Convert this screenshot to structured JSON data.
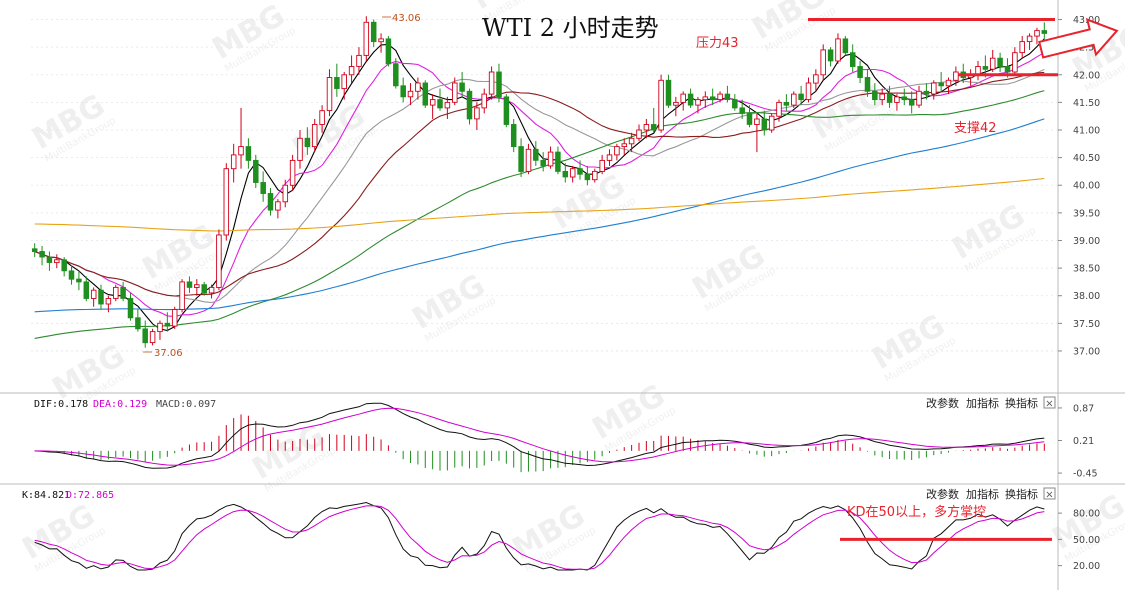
{
  "chart_data": {
    "type": "candlestick",
    "title": "WTI 2 小时走势",
    "price_axis": {
      "ticks": [
        "43.00",
        "42.50",
        "42.00",
        "41.50",
        "41.00",
        "40.50",
        "40.00",
        "39.50",
        "39.00",
        "38.50",
        "38.00",
        "37.50",
        "37.00"
      ],
      "range": [
        36.8,
        43.1
      ]
    },
    "annotations": {
      "resistance": "压力43",
      "support": "支撑42",
      "high": "43.06",
      "low": "37.06",
      "kd_note": "KD在50以上，多方掌控"
    },
    "levels": {
      "resistance": 43.0,
      "support": 42.0
    },
    "ohlc": [
      [
        38.85,
        38.95,
        38.7,
        38.8
      ],
      [
        38.8,
        38.9,
        38.55,
        38.7
      ],
      [
        38.7,
        38.8,
        38.45,
        38.6
      ],
      [
        38.6,
        38.75,
        38.5,
        38.65
      ],
      [
        38.65,
        38.7,
        38.35,
        38.45
      ],
      [
        38.45,
        38.55,
        38.2,
        38.3
      ],
      [
        38.3,
        38.45,
        38.1,
        38.25
      ],
      [
        38.25,
        38.35,
        37.9,
        37.95
      ],
      [
        37.95,
        38.15,
        37.8,
        38.1
      ],
      [
        38.1,
        38.2,
        37.75,
        37.85
      ],
      [
        37.85,
        38.0,
        37.7,
        37.95
      ],
      [
        37.95,
        38.2,
        37.9,
        38.15
      ],
      [
        38.15,
        38.25,
        37.9,
        37.95
      ],
      [
        37.95,
        38.05,
        37.55,
        37.6
      ],
      [
        37.6,
        37.75,
        37.35,
        37.4
      ],
      [
        37.4,
        37.55,
        37.06,
        37.15
      ],
      [
        37.15,
        37.4,
        37.1,
        37.35
      ],
      [
        37.35,
        37.55,
        37.2,
        37.5
      ],
      [
        37.5,
        37.7,
        37.35,
        37.45
      ],
      [
        37.45,
        37.8,
        37.4,
        37.75
      ],
      [
        37.75,
        38.3,
        37.7,
        38.25
      ],
      [
        38.25,
        38.35,
        38.05,
        38.15
      ],
      [
        38.15,
        38.3,
        38.0,
        38.2
      ],
      [
        38.2,
        38.25,
        38.0,
        38.05
      ],
      [
        38.05,
        38.2,
        37.95,
        38.15
      ],
      [
        38.15,
        39.2,
        38.1,
        39.1
      ],
      [
        39.1,
        40.4,
        39.0,
        40.3
      ],
      [
        40.3,
        40.75,
        40.05,
        40.55
      ],
      [
        40.55,
        41.4,
        40.3,
        40.7
      ],
      [
        40.7,
        40.85,
        40.3,
        40.45
      ],
      [
        40.45,
        40.55,
        39.95,
        40.05
      ],
      [
        40.05,
        40.25,
        39.7,
        39.85
      ],
      [
        39.85,
        39.95,
        39.45,
        39.55
      ],
      [
        39.55,
        39.75,
        39.4,
        39.7
      ],
      [
        39.7,
        40.1,
        39.6,
        40.0
      ],
      [
        40.0,
        40.55,
        39.9,
        40.45
      ],
      [
        40.45,
        41.0,
        40.3,
        40.85
      ],
      [
        40.85,
        41.05,
        40.55,
        40.7
      ],
      [
        40.7,
        41.2,
        40.6,
        41.1
      ],
      [
        41.1,
        41.45,
        40.95,
        41.35
      ],
      [
        41.35,
        42.1,
        41.25,
        41.95
      ],
      [
        41.95,
        42.2,
        41.6,
        41.75
      ],
      [
        41.75,
        42.05,
        41.55,
        42.0
      ],
      [
        42.0,
        42.35,
        41.85,
        42.15
      ],
      [
        42.15,
        42.5,
        42.0,
        42.35
      ],
      [
        42.35,
        43.06,
        42.25,
        42.95
      ],
      [
        42.95,
        43.0,
        42.5,
        42.6
      ],
      [
        42.6,
        42.75,
        42.4,
        42.65
      ],
      [
        42.65,
        42.7,
        42.15,
        42.2
      ],
      [
        42.2,
        42.3,
        41.75,
        41.8
      ],
      [
        41.8,
        41.95,
        41.5,
        41.6
      ],
      [
        41.6,
        41.85,
        41.45,
        41.7
      ],
      [
        41.7,
        41.95,
        41.55,
        41.85
      ],
      [
        41.85,
        41.9,
        41.4,
        41.45
      ],
      [
        41.45,
        41.65,
        41.2,
        41.55
      ],
      [
        41.55,
        41.75,
        41.35,
        41.4
      ],
      [
        41.4,
        41.6,
        41.2,
        41.5
      ],
      [
        41.5,
        41.95,
        41.45,
        41.85
      ],
      [
        41.85,
        42.05,
        41.6,
        41.7
      ],
      [
        41.7,
        41.75,
        41.1,
        41.2
      ],
      [
        41.2,
        41.5,
        41.0,
        41.4
      ],
      [
        41.4,
        41.75,
        41.3,
        41.65
      ],
      [
        41.65,
        42.15,
        41.55,
        42.05
      ],
      [
        42.05,
        42.2,
        41.5,
        41.6
      ],
      [
        41.6,
        41.65,
        41.05,
        41.1
      ],
      [
        41.1,
        41.2,
        40.6,
        40.7
      ],
      [
        40.7,
        40.85,
        40.15,
        40.25
      ],
      [
        40.25,
        40.75,
        40.2,
        40.65
      ],
      [
        40.65,
        40.8,
        40.35,
        40.45
      ],
      [
        40.45,
        40.6,
        40.25,
        40.35
      ],
      [
        40.35,
        40.7,
        40.3,
        40.6
      ],
      [
        40.6,
        40.7,
        40.2,
        40.25
      ],
      [
        40.25,
        40.4,
        40.05,
        40.15
      ],
      [
        40.15,
        40.35,
        40.05,
        40.3
      ],
      [
        40.3,
        40.45,
        40.1,
        40.2
      ],
      [
        40.2,
        40.35,
        40.0,
        40.1
      ],
      [
        40.1,
        40.3,
        40.05,
        40.25
      ],
      [
        40.25,
        40.55,
        40.2,
        40.45
      ],
      [
        40.45,
        40.65,
        40.35,
        40.55
      ],
      [
        40.55,
        40.75,
        40.45,
        40.7
      ],
      [
        40.7,
        40.85,
        40.55,
        40.75
      ],
      [
        40.75,
        40.95,
        40.6,
        40.85
      ],
      [
        40.85,
        41.1,
        40.8,
        41.0
      ],
      [
        41.0,
        41.2,
        40.85,
        41.1
      ],
      [
        41.1,
        41.4,
        40.95,
        41.0
      ],
      [
        41.0,
        42.0,
        40.95,
        41.9
      ],
      [
        41.9,
        42.0,
        41.4,
        41.45
      ],
      [
        41.45,
        41.6,
        41.25,
        41.5
      ],
      [
        41.5,
        41.7,
        41.35,
        41.65
      ],
      [
        41.65,
        41.75,
        41.4,
        41.45
      ],
      [
        41.45,
        41.6,
        41.3,
        41.55
      ],
      [
        41.55,
        41.7,
        41.4,
        41.6
      ],
      [
        41.6,
        41.75,
        41.45,
        41.55
      ],
      [
        41.55,
        41.7,
        41.5,
        41.65
      ],
      [
        41.65,
        41.8,
        41.5,
        41.55
      ],
      [
        41.55,
        41.65,
        41.35,
        41.4
      ],
      [
        41.4,
        41.55,
        41.2,
        41.3
      ],
      [
        41.3,
        41.45,
        41.05,
        41.1
      ],
      [
        41.1,
        41.3,
        40.6,
        41.2
      ],
      [
        41.2,
        41.35,
        40.9,
        41.0
      ],
      [
        41.0,
        41.3,
        40.95,
        41.25
      ],
      [
        41.25,
        41.55,
        41.15,
        41.5
      ],
      [
        41.5,
        41.65,
        41.35,
        41.45
      ],
      [
        41.45,
        41.7,
        41.4,
        41.65
      ],
      [
        41.65,
        41.8,
        41.45,
        41.55
      ],
      [
        41.55,
        41.95,
        41.5,
        41.85
      ],
      [
        41.85,
        42.1,
        41.7,
        42.0
      ],
      [
        42.0,
        42.55,
        41.9,
        42.45
      ],
      [
        42.45,
        42.5,
        42.15,
        42.25
      ],
      [
        42.25,
        42.75,
        42.2,
        42.65
      ],
      [
        42.65,
        42.7,
        42.35,
        42.4
      ],
      [
        42.4,
        42.55,
        42.05,
        42.15
      ],
      [
        42.15,
        42.25,
        41.85,
        41.95
      ],
      [
        41.95,
        42.1,
        41.6,
        41.7
      ],
      [
        41.7,
        41.85,
        41.45,
        41.55
      ],
      [
        41.55,
        41.75,
        41.45,
        41.65
      ],
      [
        41.65,
        41.8,
        41.4,
        41.5
      ],
      [
        41.5,
        41.65,
        41.35,
        41.6
      ],
      [
        41.6,
        41.75,
        41.45,
        41.55
      ],
      [
        41.55,
        41.7,
        41.3,
        41.45
      ],
      [
        41.45,
        41.8,
        41.4,
        41.7
      ],
      [
        41.7,
        41.85,
        41.55,
        41.65
      ],
      [
        41.65,
        41.9,
        41.55,
        41.85
      ],
      [
        41.85,
        42.05,
        41.7,
        41.8
      ],
      [
        41.8,
        41.95,
        41.65,
        41.9
      ],
      [
        41.9,
        42.15,
        41.8,
        42.05
      ],
      [
        42.05,
        42.2,
        41.85,
        41.95
      ],
      [
        41.95,
        42.1,
        41.8,
        42.0
      ],
      [
        42.0,
        42.25,
        41.9,
        42.15
      ],
      [
        42.15,
        42.35,
        41.95,
        42.1
      ],
      [
        42.1,
        42.45,
        42.05,
        42.3
      ],
      [
        42.3,
        42.4,
        42.05,
        42.15
      ],
      [
        42.15,
        42.3,
        41.95,
        42.05
      ],
      [
        42.05,
        42.5,
        42.0,
        42.4
      ],
      [
        42.4,
        42.7,
        42.3,
        42.6
      ],
      [
        42.6,
        42.75,
        42.45,
        42.7
      ],
      [
        42.7,
        42.85,
        42.55,
        42.8
      ],
      [
        42.8,
        42.95,
        42.65,
        42.75
      ]
    ],
    "moving_averages": [
      {
        "name": "",
        "color": "#000000",
        "period": 5
      },
      {
        "name": "",
        "color": "#e020e0",
        "period": 10
      },
      {
        "name": "",
        "color": "#999999",
        "period": 20
      },
      {
        "name": "",
        "color": "#8b1c1c",
        "period": 30
      },
      {
        "name": "",
        "color": "#2e8b2e",
        "period": 60
      },
      {
        "name": "",
        "color": "#1f7fd1",
        "period": 120
      },
      {
        "name": "",
        "color": "#e8a317",
        "period": 250
      }
    ],
    "macd_panel": {
      "dif_label": "DIF:0.178",
      "dea_label": "DEA:0.129",
      "macd_label": "MACD:0.097",
      "ticks": [
        "0.87",
        "0.21",
        "-0.45"
      ],
      "range": [
        -0.55,
        0.95
      ]
    },
    "kd_panel": {
      "k_label": "K:84.821",
      "d_label": "D:72.865",
      "ticks": [
        "80.00",
        "50.00",
        "20.00"
      ],
      "range": [
        15,
        95
      ],
      "level": 50
    },
    "panel_buttons": [
      "改参数",
      "加指标",
      "换指标"
    ],
    "close_symbol": "×",
    "watermark": "MBG MultiBankGroup"
  },
  "colors": {
    "up": "#d0021b",
    "down": "#1f8f1f",
    "grid": "#dfe6ef",
    "accent_red": "#e8232b"
  }
}
